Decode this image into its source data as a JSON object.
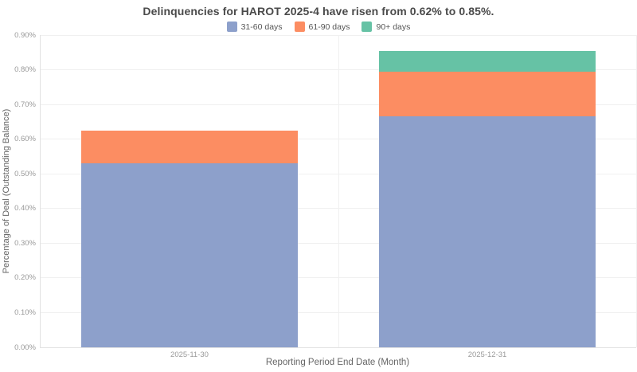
{
  "title": "Delinquencies for HAROT 2025-4 have risen from 0.62% to 0.85%.",
  "chart_data": {
    "type": "bar",
    "stacked": true,
    "title": "Delinquencies for HAROT 2025-4 have risen from 0.62% to 0.85%.",
    "categories": [
      "2025-11-30",
      "2025-12-31"
    ],
    "series": [
      {
        "name": "31-60 days",
        "color": "#8da0cb",
        "values": [
          0.53,
          0.665
        ]
      },
      {
        "name": "61-90 days",
        "color": "#fc8d62",
        "values": [
          0.095,
          0.13
        ]
      },
      {
        "name": "90+ days",
        "color": "#66c2a5",
        "values": [
          0.0,
          0.06
        ]
      }
    ],
    "xlabel": "Reporting Period End Date (Month)",
    "ylabel": "Percentage of Deal (Outstanding Balance)",
    "ylim": [
      0,
      0.9
    ],
    "yticks": [
      {
        "value": 0.0,
        "label": "0.00%"
      },
      {
        "value": 0.1,
        "label": "0.10%"
      },
      {
        "value": 0.2,
        "label": "0.20%"
      },
      {
        "value": 0.3,
        "label": "0.30%"
      },
      {
        "value": 0.4,
        "label": "0.40%"
      },
      {
        "value": 0.5,
        "label": "0.50%"
      },
      {
        "value": 0.6,
        "label": "0.60%"
      },
      {
        "value": 0.7,
        "label": "0.70%"
      },
      {
        "value": 0.8,
        "label": "0.80%"
      },
      {
        "value": 0.9,
        "label": "0.90%"
      }
    ],
    "legend_position": "top",
    "grid": true,
    "colors": {
      "gridline": "#f0f0f0",
      "axis_line": "#e2e2e2",
      "tick_label": "#999999",
      "axis_title": "#666666",
      "chart_title": "#4a4a4a"
    }
  }
}
